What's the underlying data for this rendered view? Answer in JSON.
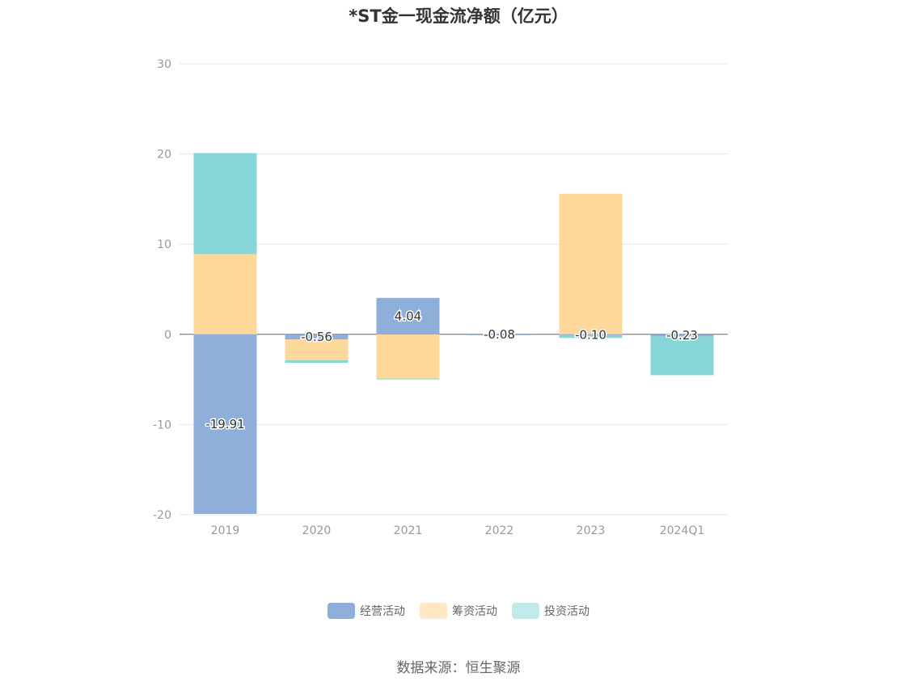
{
  "chart_data": {
    "type": "bar",
    "stacked": true,
    "title": "*ST金一现金流净额（亿元）",
    "categories": [
      "2019",
      "2020",
      "2021",
      "2022",
      "2023",
      "2024Q1"
    ],
    "ylim": [
      -20,
      30
    ],
    "yticks": [
      "30",
      "20",
      "10",
      "0",
      "-10",
      "-20"
    ],
    "ytick_values": [
      30,
      20,
      10,
      0,
      -10,
      -20
    ],
    "grid": true,
    "legend_position": "bottom",
    "series": [
      {
        "name": "经营活动",
        "color": "#8fafdb",
        "values": [
          -19.91,
          -0.56,
          4.04,
          -0.08,
          -0.1,
          -0.23
        ],
        "labels": [
          "-19.91",
          "-0.56",
          "4.04",
          "-0.08",
          "-0.10",
          "-0.23"
        ]
      },
      {
        "name": "筹资活动",
        "color": "#ffd99b",
        "values": [
          8.9,
          -2.3,
          -4.9,
          0.0,
          15.6,
          0.0
        ]
      },
      {
        "name": "投资活动",
        "color": "#86d5d8",
        "values": [
          11.2,
          -0.3,
          -0.1,
          0.0,
          -0.3,
          -4.3
        ]
      }
    ]
  },
  "legend": {
    "items": [
      {
        "label": "经营活动",
        "color": "#8fafdb"
      },
      {
        "label": "筹资活动",
        "color": "#ffe7c5"
      },
      {
        "label": "投资活动",
        "color": "#c1eaec"
      }
    ]
  },
  "source": "数据来源：恒生聚源"
}
